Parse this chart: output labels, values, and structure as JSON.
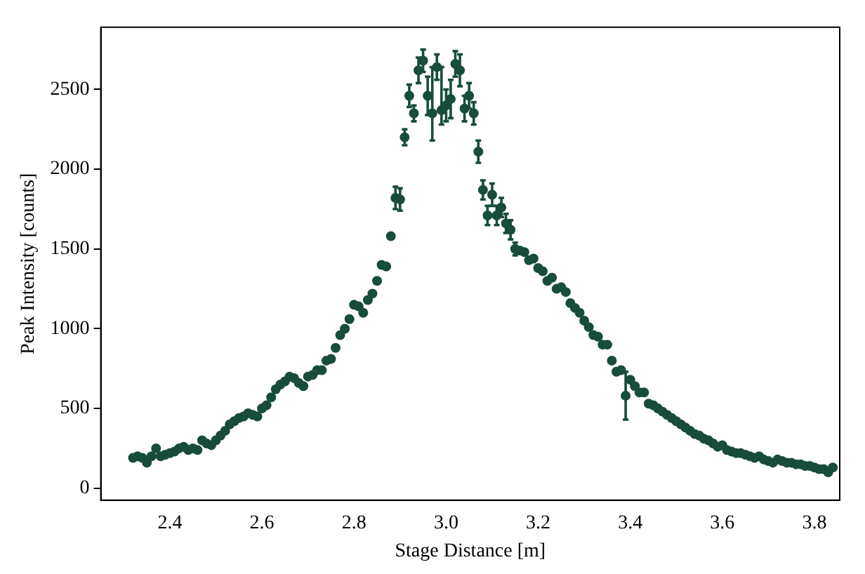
{
  "chart_data": {
    "type": "scatter",
    "xlabel": "Stage Distance [m]",
    "ylabel": "Peak Intensity [counts]",
    "xlim": [
      2.25,
      3.855
    ],
    "ylim": [
      -75,
      2890
    ],
    "xticks": [
      {
        "value": 2.4,
        "label": "2.4"
      },
      {
        "value": 2.6,
        "label": "2.6"
      },
      {
        "value": 2.8,
        "label": "2.8"
      },
      {
        "value": 3.0,
        "label": "3.0"
      },
      {
        "value": 3.2,
        "label": "3.2"
      },
      {
        "value": 3.4,
        "label": "3.4"
      },
      {
        "value": 3.6,
        "label": "3.6"
      },
      {
        "value": 3.8,
        "label": "3.8"
      }
    ],
    "yticks": [
      0,
      500,
      1000,
      1500,
      2000,
      2500
    ],
    "grid": false,
    "legend": false,
    "marker": "circle",
    "x": [
      2.32,
      2.33,
      2.34,
      2.35,
      2.36,
      2.37,
      2.38,
      2.39,
      2.4,
      2.41,
      2.42,
      2.43,
      2.44,
      2.45,
      2.46,
      2.47,
      2.48,
      2.49,
      2.5,
      2.51,
      2.52,
      2.53,
      2.54,
      2.55,
      2.56,
      2.57,
      2.58,
      2.59,
      2.6,
      2.61,
      2.62,
      2.63,
      2.64,
      2.65,
      2.66,
      2.67,
      2.68,
      2.69,
      2.7,
      2.71,
      2.72,
      2.73,
      2.74,
      2.75,
      2.76,
      2.77,
      2.78,
      2.79,
      2.8,
      2.81,
      2.82,
      2.83,
      2.84,
      2.85,
      2.86,
      2.87,
      2.88,
      2.89,
      2.9,
      2.91,
      2.92,
      2.93,
      2.94,
      2.95,
      2.96,
      2.97,
      2.98,
      2.99,
      3.0,
      3.01,
      3.02,
      3.03,
      3.04,
      3.05,
      3.06,
      3.07,
      3.08,
      3.09,
      3.1,
      3.11,
      3.12,
      3.13,
      3.14,
      3.15,
      3.16,
      3.17,
      3.18,
      3.19,
      3.2,
      3.21,
      3.22,
      3.23,
      3.24,
      3.25,
      3.26,
      3.27,
      3.28,
      3.29,
      3.3,
      3.31,
      3.32,
      3.33,
      3.34,
      3.35,
      3.36,
      3.37,
      3.38,
      3.39,
      3.4,
      3.41,
      3.42,
      3.43,
      3.44,
      3.45,
      3.46,
      3.47,
      3.48,
      3.49,
      3.5,
      3.51,
      3.52,
      3.53,
      3.54,
      3.55,
      3.56,
      3.57,
      3.58,
      3.59,
      3.6,
      3.61,
      3.62,
      3.63,
      3.64,
      3.65,
      3.66,
      3.67,
      3.68,
      3.69,
      3.7,
      3.71,
      3.72,
      3.73,
      3.74,
      3.75,
      3.76,
      3.77,
      3.78,
      3.79,
      3.8,
      3.81,
      3.82,
      3.83,
      3.84
    ],
    "series": [
      {
        "color": "#174d3a",
        "values": [
          190,
          200,
          190,
          160,
          200,
          250,
          200,
          210,
          220,
          230,
          250,
          260,
          240,
          250,
          240,
          300,
          280,
          270,
          300,
          330,
          360,
          400,
          420,
          440,
          450,
          470,
          460,
          450,
          500,
          520,
          570,
          620,
          650,
          670,
          700,
          690,
          660,
          640,
          700,
          710,
          740,
          740,
          800,
          810,
          880,
          960,
          1000,
          1060,
          1150,
          1140,
          1100,
          1180,
          1220,
          1300,
          1400,
          1390,
          1580,
          1820,
          1810,
          2200,
          2460,
          2350,
          2620,
          2680,
          2460,
          2350,
          2640,
          2370,
          2400,
          2440,
          2660,
          2620,
          2380,
          2460,
          2350,
          2110,
          1870,
          1710,
          1840,
          1710,
          1760,
          1660,
          1620,
          1500,
          1490,
          1480,
          1430,
          1440,
          1380,
          1360,
          1300,
          1320,
          1250,
          1260,
          1230,
          1160,
          1130,
          1100,
          1050,
          1010,
          960,
          950,
          900,
          900,
          800,
          730,
          740,
          580,
          680,
          640,
          600,
          600,
          530,
          520,
          500,
          480,
          460,
          440,
          420,
          400,
          380,
          360,
          340,
          330,
          310,
          300,
          280,
          260,
          270,
          240,
          230,
          220,
          220,
          210,
          200,
          190,
          200,
          180,
          170,
          160,
          180,
          170,
          160,
          160,
          150,
          150,
          140,
          140,
          130,
          120,
          120,
          100,
          130
        ],
        "errors": [
          null,
          null,
          null,
          null,
          null,
          null,
          null,
          null,
          null,
          null,
          null,
          null,
          null,
          null,
          null,
          null,
          null,
          null,
          null,
          null,
          null,
          null,
          null,
          null,
          null,
          null,
          null,
          null,
          null,
          null,
          null,
          null,
          null,
          null,
          null,
          null,
          null,
          null,
          null,
          null,
          null,
          null,
          null,
          null,
          null,
          null,
          null,
          null,
          null,
          null,
          null,
          null,
          null,
          null,
          null,
          null,
          null,
          70,
          70,
          50,
          70,
          50,
          80,
          70,
          120,
          [
            2180,
            2640
          ],
          80,
          [
            2280,
            2640
          ],
          100,
          120,
          80,
          100,
          80,
          80,
          70,
          70,
          60,
          60,
          70,
          60,
          60,
          60,
          60,
          40,
          null,
          null,
          null,
          null,
          null,
          null,
          null,
          null,
          null,
          null,
          null,
          null,
          null,
          null,
          null,
          null,
          null,
          null,
          null,
          null,
          null,
          null,
          null,
          150,
          null,
          null,
          null,
          null,
          null,
          null,
          null,
          null,
          null,
          null,
          null,
          null,
          null,
          null,
          null,
          null,
          null,
          null,
          null,
          null,
          null,
          null,
          null,
          null,
          null,
          null,
          null,
          null,
          null,
          null,
          null,
          null,
          null,
          null,
          null,
          null,
          null,
          null,
          null,
          null,
          null,
          null,
          null,
          null,
          null
        ]
      }
    ]
  }
}
